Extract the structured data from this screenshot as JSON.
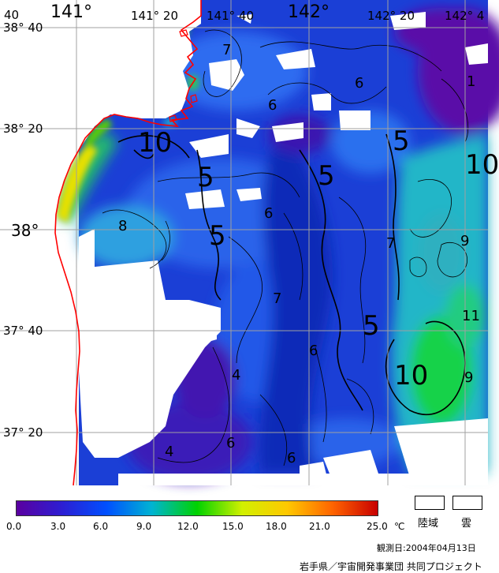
{
  "map": {
    "lat_labels": [
      "38° 40",
      "38° 20",
      "38°",
      "37° 40",
      "37° 20",
      "40"
    ],
    "lon_labels": [
      "141°",
      "141° 20",
      "141° 40",
      "142°",
      "142° 20",
      "142° 4"
    ],
    "contour_labels": [
      "7",
      "6",
      "1",
      "6",
      "10",
      "5",
      "5",
      "10",
      "6",
      "8",
      "5",
      "5",
      "7",
      "9",
      "7",
      "5",
      "6",
      "11",
      "4",
      "10",
      "9",
      "4",
      "6",
      "6"
    ]
  },
  "colorbar": {
    "ticks": [
      "0.0",
      "3.0",
      "6.0",
      "9.0",
      "12.0",
      "15.0",
      "18.0",
      "21.0",
      "25.0"
    ],
    "unit": "℃",
    "colors": [
      "#5a00a0",
      "#2d1ed2",
      "#0050ff",
      "#00b4d2",
      "#00d200",
      "#d2f000",
      "#ffc800",
      "#ff6400",
      "#c80000"
    ]
  },
  "legend": {
    "land": "陸域",
    "cloud": "雲"
  },
  "footer": {
    "date": "観測日:2004年04月13日",
    "credit": "岩手県／宇宙開発事業団 共同プロジェクト"
  },
  "colors": {
    "coastline": "#ff0000",
    "grid": "#a0a0a0"
  }
}
